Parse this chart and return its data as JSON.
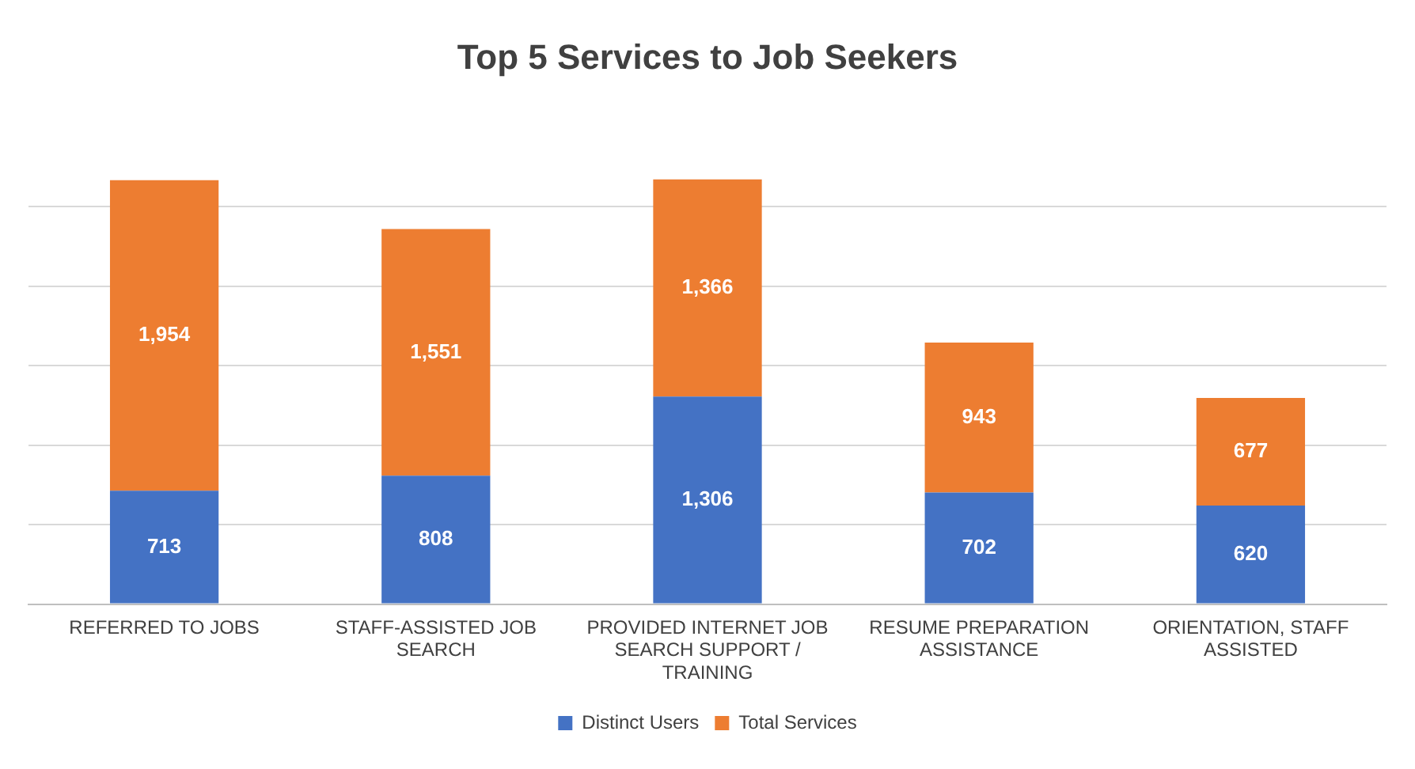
{
  "chart_data": {
    "type": "bar",
    "title": "Top 5 Services to Job Seekers",
    "categories": [
      "REFERRED TO JOBS",
      "STAFF-ASSISTED JOB SEARCH",
      "PROVIDED INTERNET JOB SEARCH SUPPORT / TRAINING",
      "RESUME PREPARATION ASSISTANCE",
      "ORIENTATION, STAFF ASSISTED"
    ],
    "series": [
      {
        "name": "Distinct Users",
        "color": "#4472c4",
        "values": [
          713,
          808,
          1306,
          702,
          620
        ],
        "value_labels": [
          "713",
          "808",
          "1,306",
          "702",
          "620"
        ]
      },
      {
        "name": "Total Services",
        "color": "#ed7d31",
        "values": [
          1954,
          1551,
          1366,
          943,
          677
        ],
        "value_labels": [
          "1,954",
          "1,551",
          "1,366",
          "943",
          "677"
        ]
      }
    ],
    "stacked": true,
    "yticks": [
      {
        "value": 0,
        "label": null
      },
      {
        "value": 500,
        "label": null
      },
      {
        "value": 1000,
        "label": null
      },
      {
        "value": 1500,
        "label": null
      },
      {
        "value": 2000,
        "label": null
      },
      {
        "value": 2500,
        "label": null
      }
    ],
    "tick_labels": "x",
    "grid": "y",
    "legend": "bottom"
  }
}
